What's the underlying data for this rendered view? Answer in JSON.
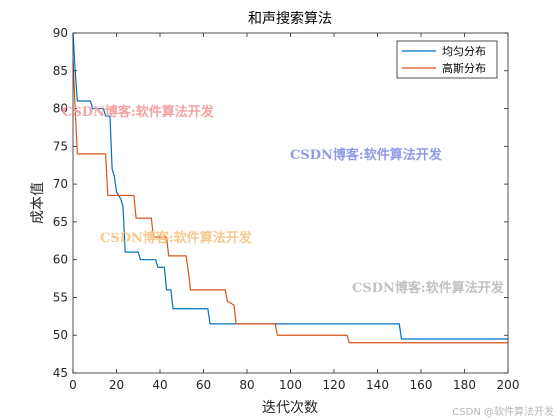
{
  "chart_data": {
    "type": "line",
    "title": "和声搜索算法",
    "xlabel": "迭代次数",
    "ylabel": "成本值",
    "xlim": [
      0,
      200
    ],
    "ylim": [
      45,
      90
    ],
    "xticks": [
      0,
      20,
      40,
      60,
      80,
      100,
      120,
      140,
      160,
      180,
      200
    ],
    "yticks": [
      45,
      50,
      55,
      60,
      65,
      70,
      75,
      80,
      85,
      90
    ],
    "legend_position": "top-right",
    "grid": false,
    "series": [
      {
        "name": "均匀分布",
        "color": "#0072BD",
        "points": [
          [
            0,
            90
          ],
          [
            1,
            85
          ],
          [
            2,
            81
          ],
          [
            8,
            81
          ],
          [
            9,
            80
          ],
          [
            14,
            80
          ],
          [
            15,
            79
          ],
          [
            17,
            79
          ],
          [
            18,
            72
          ],
          [
            19,
            71
          ],
          [
            20,
            69
          ],
          [
            22,
            68
          ],
          [
            23,
            67
          ],
          [
            24,
            61
          ],
          [
            30,
            61
          ],
          [
            31,
            60
          ],
          [
            38,
            60
          ],
          [
            39,
            59
          ],
          [
            42,
            59
          ],
          [
            43,
            56
          ],
          [
            45,
            56
          ],
          [
            46,
            53.5
          ],
          [
            62,
            53.5
          ],
          [
            63,
            51.5
          ],
          [
            150,
            51.5
          ],
          [
            151,
            49.5
          ],
          [
            200,
            49.5
          ]
        ]
      },
      {
        "name": "高斯分布",
        "color": "#D95319",
        "points": [
          [
            0,
            86.5
          ],
          [
            1,
            80
          ],
          [
            2,
            74
          ],
          [
            15,
            74
          ],
          [
            16,
            68.5
          ],
          [
            28,
            68.5
          ],
          [
            29,
            65.5
          ],
          [
            36,
            65.5
          ],
          [
            37,
            63
          ],
          [
            43,
            63
          ],
          [
            44,
            60.5
          ],
          [
            52,
            60.5
          ],
          [
            53,
            58.5
          ],
          [
            54,
            56
          ],
          [
            70,
            56
          ],
          [
            71,
            54.5
          ],
          [
            74,
            54
          ],
          [
            75,
            51.5
          ],
          [
            93,
            51.5
          ],
          [
            94,
            50
          ],
          [
            126,
            50
          ],
          [
            127,
            49
          ],
          [
            200,
            49
          ]
        ]
      }
    ]
  },
  "watermarks": [
    "CSDN博客:软件算法开发",
    "CSDN博客:软件算法开发",
    "CSDN博客:软件算法开发",
    "CSDN博客:软件算法开发"
  ],
  "footer_watermark": "CSDN @软件算法开发"
}
